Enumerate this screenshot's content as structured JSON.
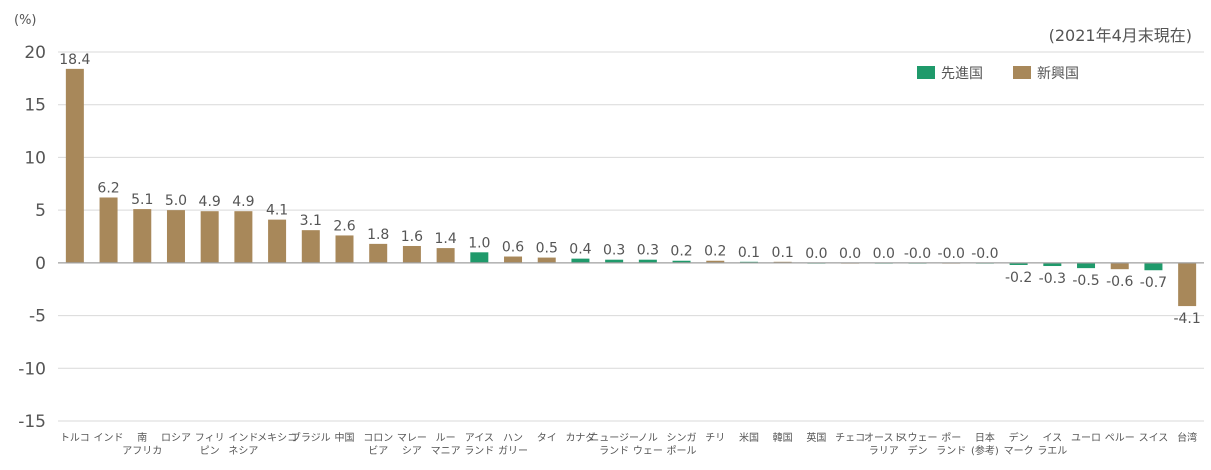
{
  "chart_data": {
    "type": "bar",
    "ylabel": "(%)",
    "note": "(2021年4月末現在)",
    "ylim": [
      -15,
      20
    ],
    "yticks": [
      20,
      15,
      10,
      5,
      0,
      -5,
      -10,
      -15
    ],
    "grid": true,
    "legend": {
      "placement": "top-right",
      "items": [
        {
          "label": "先進国",
          "color": "#1f9a6b"
        },
        {
          "label": "新興国",
          "color": "#a8885a"
        }
      ]
    },
    "colors": {
      "developed": "#1f9a6b",
      "emerging": "#a8885a"
    },
    "categories": [
      [
        "トルコ"
      ],
      [
        "インド"
      ],
      [
        "南",
        "アフリカ"
      ],
      [
        "ロシア"
      ],
      [
        "フィリ",
        "ピン"
      ],
      [
        "インド",
        "ネシア"
      ],
      [
        "メキシコ"
      ],
      [
        "ブラジル"
      ],
      [
        "中国"
      ],
      [
        "コロン",
        "ビア"
      ],
      [
        "マレー",
        "シア"
      ],
      [
        "ルー",
        "マニア"
      ],
      [
        "アイス",
        "ランド"
      ],
      [
        "ハン",
        "ガリー"
      ],
      [
        "タイ"
      ],
      [
        "カナダ"
      ],
      [
        "ニュージー",
        "ランド"
      ],
      [
        "ノル",
        "ウェー"
      ],
      [
        "シンガ",
        "ポール"
      ],
      [
        "チリ"
      ],
      [
        "米国"
      ],
      [
        "韓国"
      ],
      [
        "英国"
      ],
      [
        "チェコ"
      ],
      [
        "オースト",
        "ラリア"
      ],
      [
        "スウェー",
        "デン"
      ],
      [
        "ポー",
        "ランド"
      ],
      [
        "日本",
        "(参考)"
      ],
      [
        "デン",
        "マーク"
      ],
      [
        "イス",
        "ラエル"
      ],
      [
        "ユーロ"
      ],
      [
        "ペルー"
      ],
      [
        "スイス"
      ],
      [
        "台湾"
      ]
    ],
    "values": [
      18.4,
      6.2,
      5.1,
      5.0,
      4.9,
      4.9,
      4.1,
      3.1,
      2.6,
      1.8,
      1.6,
      1.4,
      1.0,
      0.6,
      0.5,
      0.4,
      0.3,
      0.3,
      0.2,
      0.2,
      0.1,
      0.1,
      0.0,
      0.0,
      0.0,
      -0.0,
      -0.0,
      -0.0,
      -0.2,
      -0.3,
      -0.5,
      -0.6,
      -0.7,
      -4.1
    ],
    "value_labels": [
      "18.4",
      "6.2",
      "5.1",
      "5.0",
      "4.9",
      "4.9",
      "4.1",
      "3.1",
      "2.6",
      "1.8",
      "1.6",
      "1.4",
      "1.0",
      "0.6",
      "0.5",
      "0.4",
      "0.3",
      "0.3",
      "0.2",
      "0.2",
      "0.1",
      "0.1",
      "0.0",
      "0.0",
      "0.0",
      "-0.0",
      "-0.0",
      "-0.0",
      "-0.2",
      "-0.3",
      "-0.5",
      "-0.6",
      "-0.7",
      "-4.1"
    ],
    "group": [
      "emerging",
      "emerging",
      "emerging",
      "emerging",
      "emerging",
      "emerging",
      "emerging",
      "emerging",
      "emerging",
      "emerging",
      "emerging",
      "emerging",
      "developed",
      "emerging",
      "emerging",
      "developed",
      "developed",
      "developed",
      "developed",
      "emerging",
      "developed",
      "emerging",
      "developed",
      "emerging",
      "developed",
      "developed",
      "emerging",
      "developed",
      "developed",
      "developed",
      "developed",
      "emerging",
      "developed",
      "emerging"
    ]
  }
}
